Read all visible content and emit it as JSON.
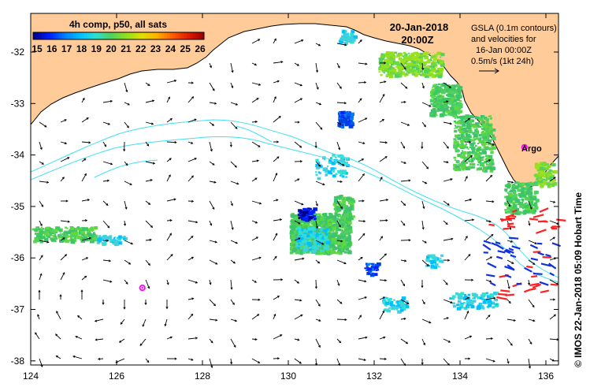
{
  "colorbar": {
    "title": "4h comp, p50, all sats",
    "labels": [
      "15",
      "16",
      "17",
      "18",
      "19",
      "20",
      "21",
      "22",
      "23",
      "24",
      "25",
      "26"
    ],
    "colors": [
      "#00008f",
      "#0020ff",
      "#0080ff",
      "#00c0ff",
      "#30e0d0",
      "#50d060",
      "#90e020",
      "#e0e000",
      "#ffb000",
      "#ff6000",
      "#e02000",
      "#a00000"
    ]
  },
  "date_line": "20-Jan-2018",
  "time_line": "20:00Z",
  "legend": {
    "line1": "GSLA (0.1m contours)",
    "line2": "and velocities for",
    "line3": "16-Jan 00:00Z",
    "line4": "0.5m/s (1kt 24h)"
  },
  "argo_label": "Argo",
  "side_text": "© IMOS 22-Jan-2018 05:09 Hobart Time",
  "axes": {
    "x_ticks": [
      "124",
      "126",
      "128",
      "130",
      "132",
      "134",
      "136"
    ],
    "y_ticks": [
      "-32",
      "-33",
      "-34",
      "-35",
      "-36",
      "-37",
      "-38"
    ]
  },
  "colors": {
    "land": "#ffcc99",
    "contour": "#40e0f0",
    "argo": "#ff00ff",
    "drifter_red": "#ff2020",
    "drifter_blue": "#1030e0"
  },
  "argo_floats": [
    {
      "lon": 135.5,
      "lat": -33.85
    },
    {
      "lon": 126.6,
      "lat": -36.58
    }
  ]
}
